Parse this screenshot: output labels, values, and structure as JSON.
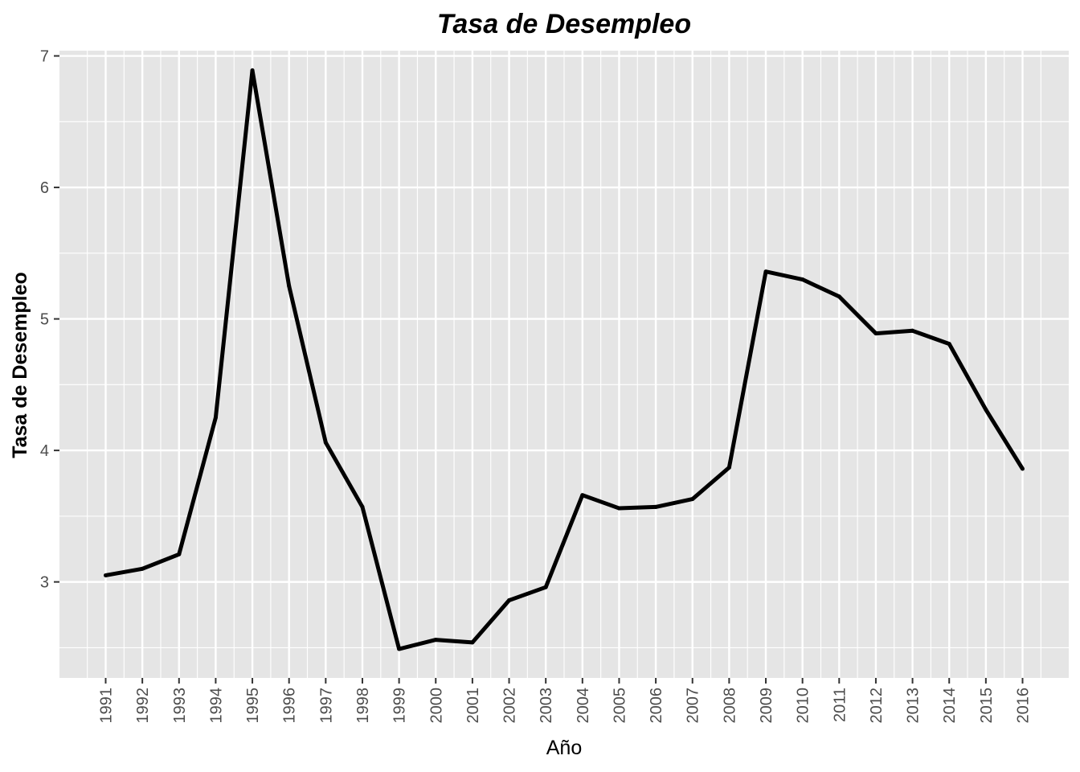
{
  "chart_data": {
    "type": "line",
    "title": "Tasa de Desempleo",
    "xlabel": "Año",
    "ylabel": "Tasa de Desempleo",
    "x": [
      "1991",
      "1992",
      "1993",
      "1994",
      "1995",
      "1996",
      "1997",
      "1998",
      "1999",
      "2000",
      "2001",
      "2002",
      "2003",
      "2004",
      "2005",
      "2006",
      "2007",
      "2008",
      "2009",
      "2010",
      "2011",
      "2012",
      "2013",
      "2014",
      "2015",
      "2016"
    ],
    "yticks": [
      3,
      4,
      5,
      6,
      7
    ],
    "ylim": [
      2.27,
      7.04
    ],
    "grid": true,
    "colors": {
      "panel": "#e5e5e5",
      "grid": "#ffffff",
      "line": "#000000",
      "tick": "#4d4d4d"
    },
    "series": [
      {
        "values": [
          3.05,
          3.1,
          3.21,
          4.25,
          6.89,
          5.25,
          4.06,
          3.57,
          2.49,
          2.56,
          2.54,
          2.86,
          2.96,
          3.66,
          3.56,
          3.57,
          3.63,
          3.87,
          5.36,
          5.3,
          5.17,
          4.89,
          4.91,
          4.81,
          4.31,
          3.86
        ]
      }
    ]
  }
}
